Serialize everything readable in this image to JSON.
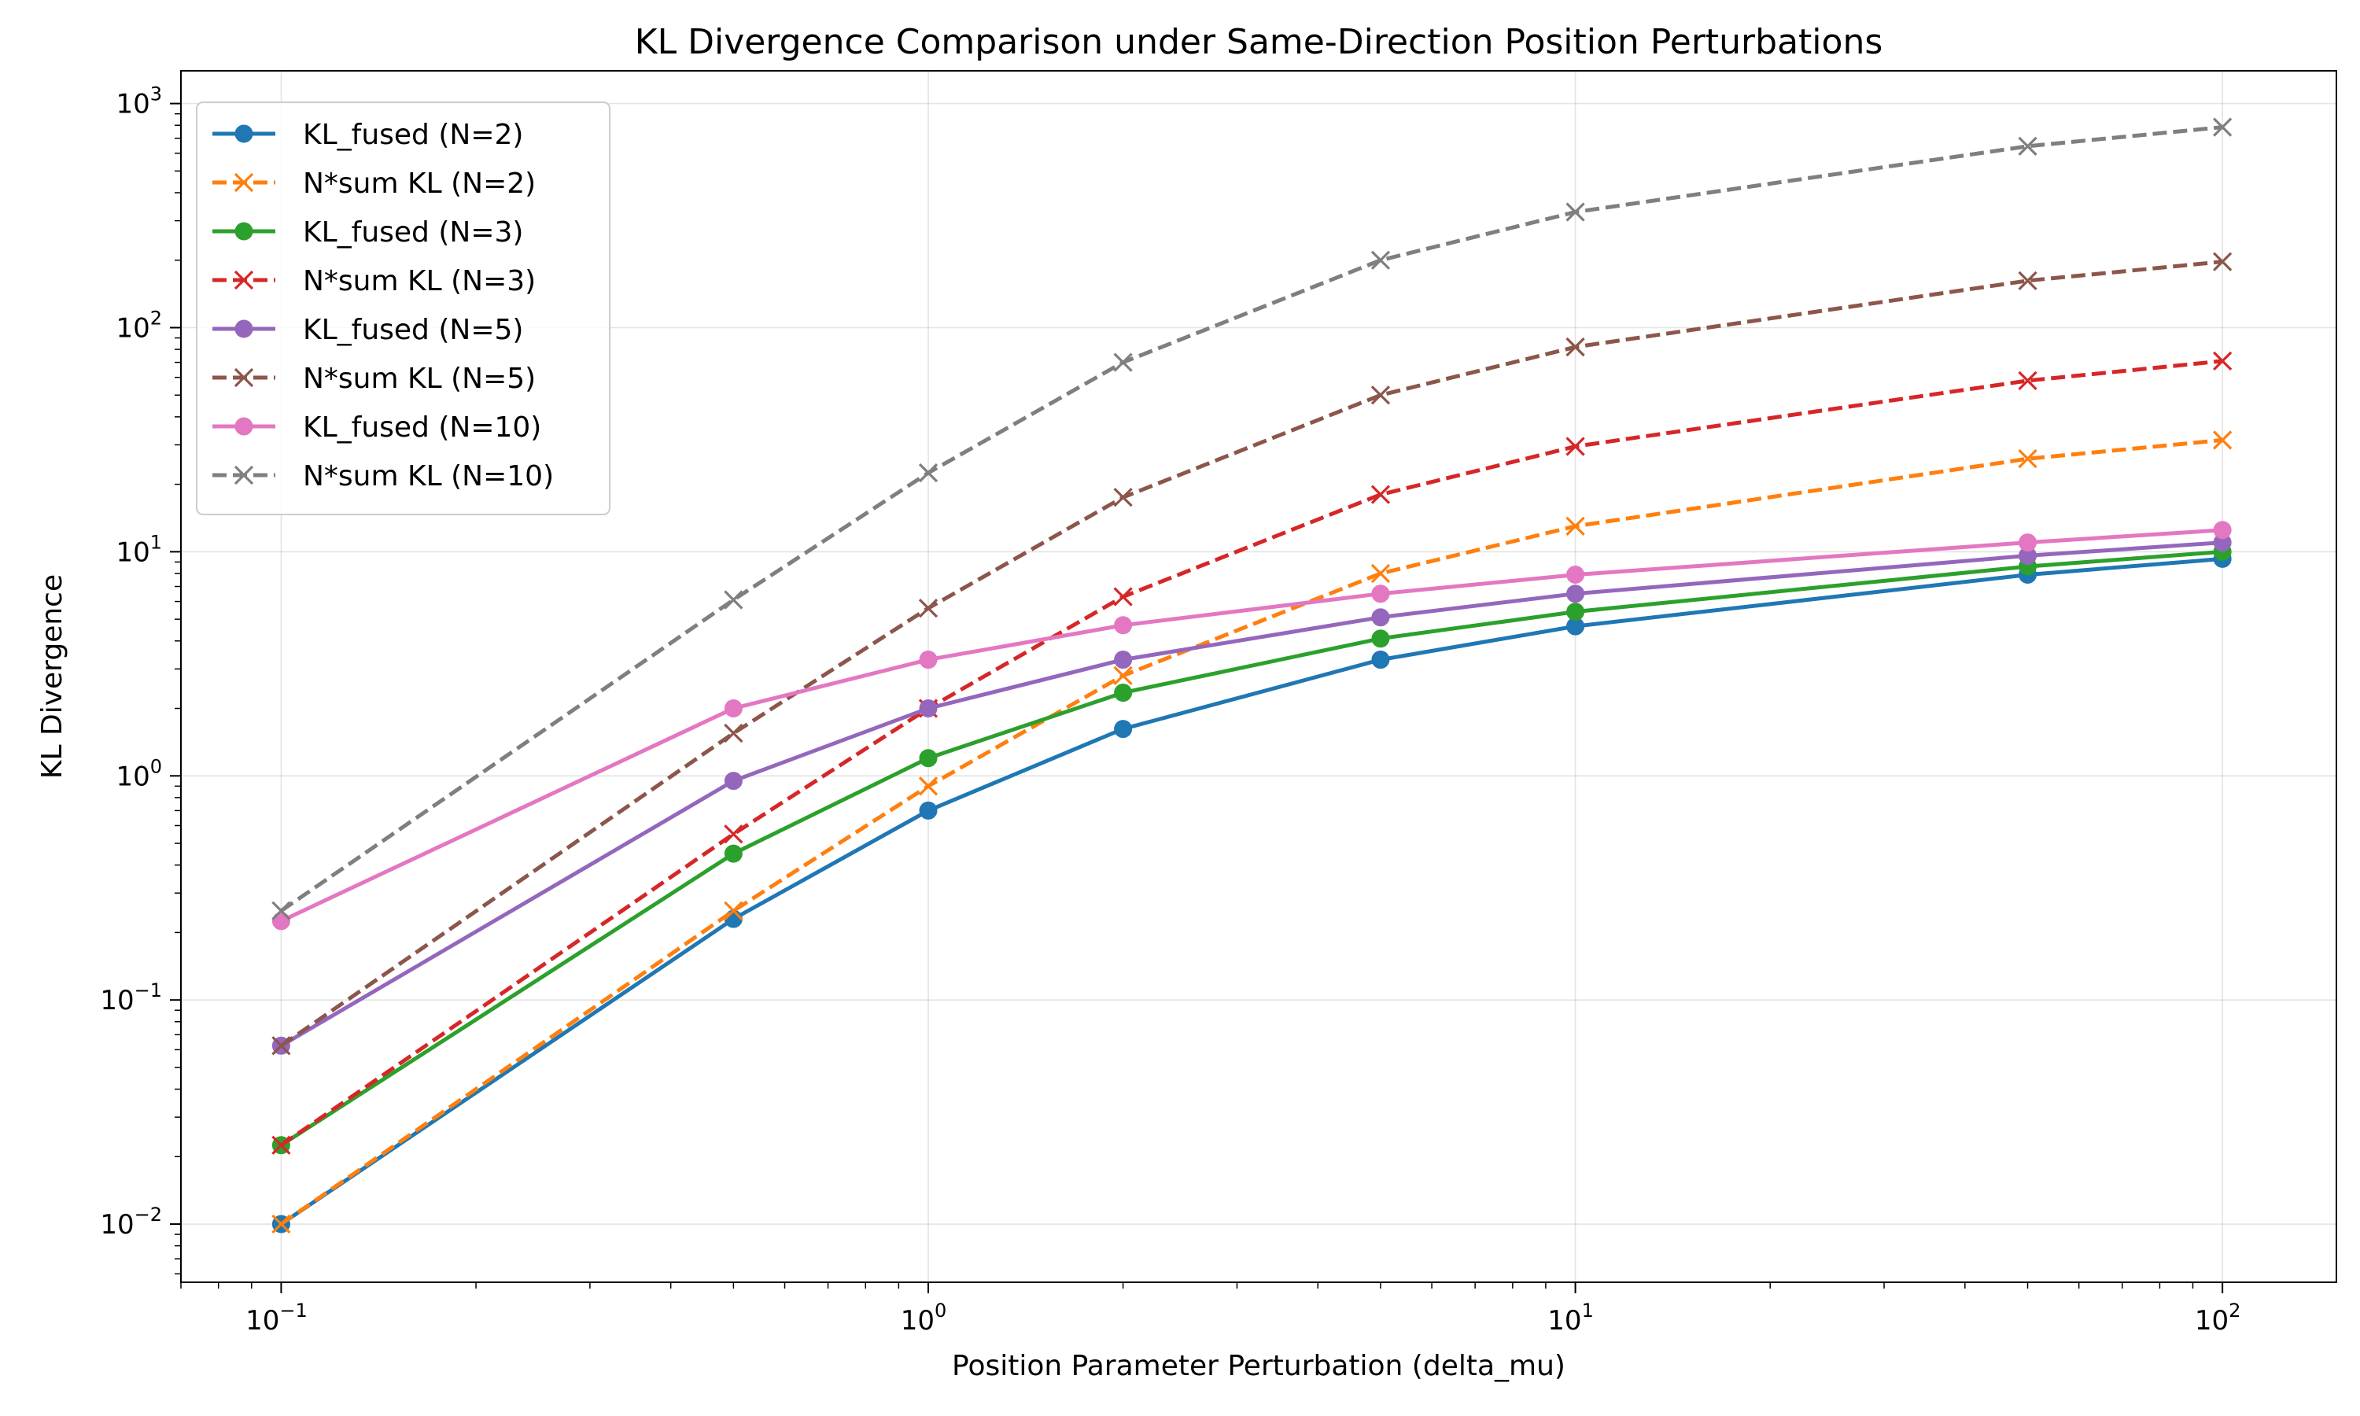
{
  "chart_data": {
    "type": "line",
    "title": "KL Divergence Comparison under Same-Direction Position Perturbations",
    "xlabel": "Position Parameter Perturbation (delta_mu)",
    "ylabel": "KL Divergence",
    "xscale": "log",
    "yscale": "log",
    "xlim": [
      0.07,
      150
    ],
    "ylim": [
      0.0055,
      1400
    ],
    "grid": true,
    "legend_position": "upper-left",
    "x_ticks": [
      {
        "value": 0.1,
        "base": "10",
        "exp": "−1"
      },
      {
        "value": 1,
        "base": "10",
        "exp": "0"
      },
      {
        "value": 10,
        "base": "10",
        "exp": "1"
      },
      {
        "value": 100,
        "base": "10",
        "exp": "2"
      }
    ],
    "y_ticks": [
      {
        "value": 0.01,
        "base": "10",
        "exp": "−2"
      },
      {
        "value": 0.1,
        "base": "10",
        "exp": "−1"
      },
      {
        "value": 1,
        "base": "10",
        "exp": "0"
      },
      {
        "value": 10,
        "base": "10",
        "exp": "1"
      },
      {
        "value": 100,
        "base": "10",
        "exp": "2"
      },
      {
        "value": 1000,
        "base": "10",
        "exp": "3"
      }
    ],
    "x": [
      0.1,
      0.5,
      1,
      2,
      5,
      10,
      50,
      100
    ],
    "series": [
      {
        "name": "KL_fused (N=2)",
        "color": "#1f77b4",
        "linestyle": "solid",
        "marker": "circle",
        "values": [
          0.01,
          0.23,
          0.7,
          1.62,
          3.3,
          4.65,
          7.9,
          9.3
        ]
      },
      {
        "name": "N*sum KL (N=2)",
        "color": "#ff7f0e",
        "linestyle": "dashed",
        "marker": "x",
        "values": [
          0.01,
          0.25,
          0.9,
          2.8,
          8.0,
          13.0,
          26.0,
          31.5
        ]
      },
      {
        "name": "KL_fused (N=3)",
        "color": "#2ca02c",
        "linestyle": "solid",
        "marker": "circle",
        "values": [
          0.0225,
          0.45,
          1.2,
          2.35,
          4.1,
          5.4,
          8.6,
          10.0
        ]
      },
      {
        "name": "N*sum KL (N=3)",
        "color": "#d62728",
        "linestyle": "dashed",
        "marker": "x",
        "values": [
          0.0225,
          0.55,
          2.0,
          6.3,
          18.0,
          29.5,
          58.0,
          71.0
        ]
      },
      {
        "name": "KL_fused (N=5)",
        "color": "#9467bd",
        "linestyle": "solid",
        "marker": "circle",
        "values": [
          0.0625,
          0.95,
          2.0,
          3.3,
          5.1,
          6.5,
          9.6,
          11.0
        ]
      },
      {
        "name": "N*sum KL (N=5)",
        "color": "#8c564b",
        "linestyle": "dashed",
        "marker": "x",
        "values": [
          0.0625,
          1.55,
          5.6,
          17.5,
          50.0,
          82.0,
          162.0,
          197.0
        ]
      },
      {
        "name": "KL_fused (N=10)",
        "color": "#e377c2",
        "linestyle": "solid",
        "marker": "circle",
        "values": [
          0.225,
          2.0,
          3.3,
          4.7,
          6.5,
          7.9,
          11.0,
          12.5
        ]
      },
      {
        "name": "N*sum KL (N=10)",
        "color": "#7f7f7f",
        "linestyle": "dashed",
        "marker": "x",
        "values": [
          0.25,
          6.1,
          22.5,
          70.0,
          200.0,
          328.0,
          645.0,
          785.0
        ]
      }
    ]
  }
}
